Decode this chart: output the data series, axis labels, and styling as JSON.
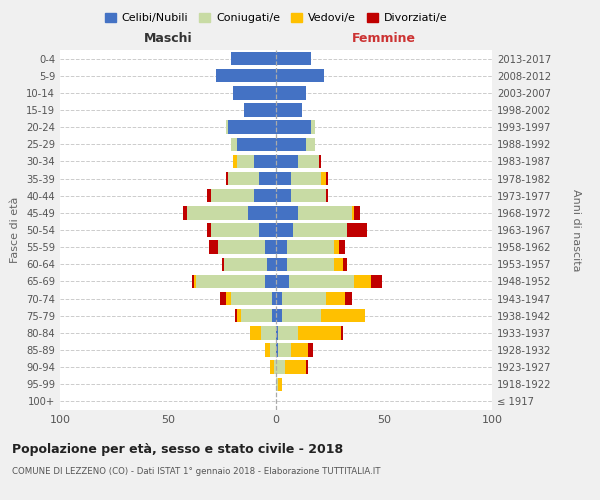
{
  "age_groups": [
    "100+",
    "95-99",
    "90-94",
    "85-89",
    "80-84",
    "75-79",
    "70-74",
    "65-69",
    "60-64",
    "55-59",
    "50-54",
    "45-49",
    "40-44",
    "35-39",
    "30-34",
    "25-29",
    "20-24",
    "15-19",
    "10-14",
    "5-9",
    "0-4"
  ],
  "birth_years": [
    "≤ 1917",
    "1918-1922",
    "1923-1927",
    "1928-1932",
    "1933-1937",
    "1938-1942",
    "1943-1947",
    "1948-1952",
    "1953-1957",
    "1958-1962",
    "1963-1967",
    "1968-1972",
    "1973-1977",
    "1978-1982",
    "1983-1987",
    "1988-1992",
    "1993-1997",
    "1998-2002",
    "2003-2007",
    "2008-2012",
    "2013-2017"
  ],
  "maschi": {
    "celibi": [
      0,
      0,
      0,
      0,
      0,
      2,
      2,
      5,
      4,
      5,
      8,
      13,
      10,
      8,
      10,
      18,
      22,
      15,
      20,
      28,
      21
    ],
    "coniugati": [
      0,
      0,
      1,
      3,
      7,
      14,
      19,
      32,
      20,
      22,
      22,
      28,
      20,
      14,
      8,
      3,
      1,
      0,
      0,
      0,
      0
    ],
    "vedovi": [
      0,
      0,
      2,
      2,
      5,
      2,
      2,
      1,
      0,
      0,
      0,
      0,
      0,
      0,
      2,
      0,
      0,
      0,
      0,
      0,
      0
    ],
    "divorziati": [
      0,
      0,
      0,
      0,
      0,
      1,
      3,
      1,
      1,
      4,
      2,
      2,
      2,
      1,
      0,
      0,
      0,
      0,
      0,
      0,
      0
    ]
  },
  "femmine": {
    "nubili": [
      0,
      0,
      0,
      1,
      1,
      3,
      3,
      6,
      5,
      5,
      8,
      10,
      7,
      7,
      10,
      14,
      16,
      12,
      14,
      22,
      16
    ],
    "coniugate": [
      0,
      1,
      4,
      6,
      9,
      18,
      20,
      30,
      22,
      22,
      25,
      25,
      16,
      14,
      10,
      4,
      2,
      0,
      0,
      0,
      0
    ],
    "vedove": [
      0,
      2,
      10,
      8,
      20,
      20,
      9,
      8,
      4,
      2,
      0,
      1,
      0,
      2,
      0,
      0,
      0,
      0,
      0,
      0,
      0
    ],
    "divorziate": [
      0,
      0,
      1,
      2,
      1,
      0,
      3,
      5,
      2,
      3,
      9,
      3,
      1,
      1,
      1,
      0,
      0,
      0,
      0,
      0,
      0
    ]
  },
  "colors": {
    "celibi_nubili": "#4472c4",
    "coniugati": "#c8dba4",
    "vedovi": "#ffc000",
    "divorziati": "#c00000"
  },
  "xlim": 100,
  "title": "Popolazione per età, sesso e stato civile - 2018",
  "subtitle": "COMUNE DI LEZZENO (CO) - Dati ISTAT 1° gennaio 2018 - Elaborazione TUTTITALIA.IT",
  "xlabel_left": "Maschi",
  "xlabel_right": "Femmine",
  "ylabel_left": "Fasce di età",
  "ylabel_right": "Anni di nascita",
  "legend_labels": [
    "Celibi/Nubili",
    "Coniugati/e",
    "Vedovi/e",
    "Divorziati/e"
  ],
  "background_color": "#f0f0f0",
  "plot_bg_color": "#ffffff"
}
